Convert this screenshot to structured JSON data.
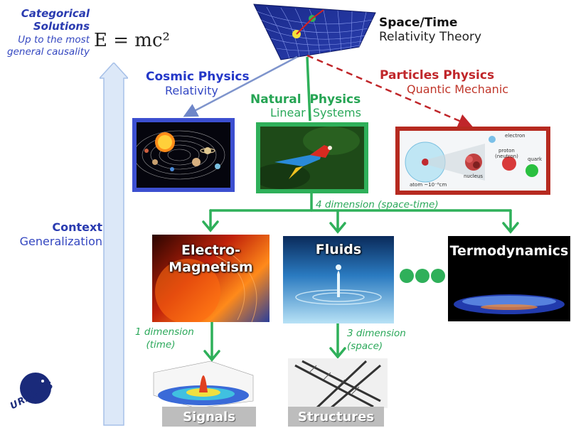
{
  "top_left": {
    "title": "Categorical Solutions",
    "subtitle": "Up to the most general causality",
    "formula": "E = mc²"
  },
  "context": {
    "title": "Context",
    "subtitle": "Generalization"
  },
  "space_time": {
    "title": "Space/Time",
    "subtitle": "Relativity Theory"
  },
  "branches": {
    "cosmic": {
      "title": "Cosmic Physics",
      "subtitle": "Relativity"
    },
    "natural": {
      "title": "Natural  Physics",
      "subtitle": "Linear  Systems"
    },
    "particles": {
      "title": "Particles Physics",
      "subtitle": "Quantic Mechanic"
    }
  },
  "dimension_4": "4 dimension (space-time)",
  "domains": {
    "electromagnetism": "Electro-\nMagnetism",
    "fluids": "Fluids",
    "termodynamics": "Termodynamics"
  },
  "dimension_1": "1 dimension\n(time)",
  "dimension_3": "3 dimension\n(space)",
  "outputs": {
    "signals": "Signals",
    "structures": "Structures"
  },
  "particle_labels": {
    "electron": "electron",
    "proton": "proton\n(neutron)",
    "quark": "quark",
    "nucleus": "nucleus",
    "atom": "atom ~10⁻⁸cm"
  },
  "logo": {
    "text": "URANUS"
  },
  "colors": {
    "cosmic": "#3c4fd0",
    "natural": "#2fb05a",
    "particles": "#b62a20",
    "axis": "#d6e4f6"
  }
}
